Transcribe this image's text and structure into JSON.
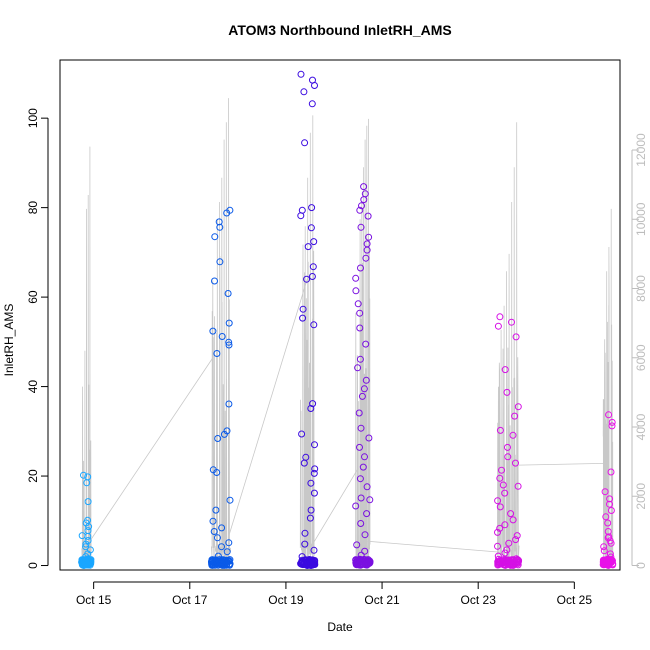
{
  "chart_data": {
    "type": "scatter",
    "title": "ATOM3 Northbound InletRH_AMS",
    "xlabel": "Date",
    "ylabel": "InletRH_AMS",
    "x_ticks": [
      "Oct 15",
      "Oct 17",
      "Oct 19",
      "Oct 21",
      "Oct 23",
      "Oct 25"
    ],
    "x_tick_days": [
      15,
      17,
      19,
      21,
      23,
      25
    ],
    "xlim_days": [
      14.3,
      25.95
    ],
    "ylim": [
      -1,
      113
    ],
    "y_ticks": [
      0,
      20,
      40,
      60,
      80,
      100
    ],
    "y2_ticks": [
      0,
      2000,
      4000,
      6000,
      8000,
      10000,
      12000
    ],
    "y2lim": [
      -130,
      14600
    ],
    "grid": false,
    "legend": "none",
    "colors": {
      "series_start": "#1e90ff",
      "series_mid": "#3010e0",
      "series_end": "#e010e0",
      "secondary_line": "#c8c8c8",
      "right_axis": "#bdbdbd"
    },
    "series": [
      {
        "flights": [
          {
            "day_start": 14.75,
            "day_end": 14.95,
            "color": "#1aa6ff",
            "high_points": [
              20.2,
              19.8,
              18.5,
              14.3,
              10.1,
              9.5,
              8.7,
              7.8,
              6.7,
              6.5,
              5.6,
              4.8,
              4.2,
              3.5,
              2.6,
              2.0,
              1.5,
              1.0,
              0.6,
              0.3
            ]
          },
          {
            "day_start": 17.45,
            "day_end": 17.85,
            "color": "#0a5ae8",
            "high_points": [
              79.4,
              78.8,
              76.8,
              75.6,
              73.5,
              67.9,
              63.6,
              60.8,
              54.2,
              52.4,
              51.2,
              49.9,
              49.3,
              47.4,
              36.1,
              30.1,
              29.3,
              28.4,
              21.4,
              20.8,
              14.6,
              12.4,
              9.9,
              8.4,
              7.6,
              6.2,
              5.1,
              4.2,
              3.1,
              2.1,
              1.2
            ]
          },
          {
            "day_start": 19.3,
            "day_end": 19.6,
            "color": "#3a0ae0",
            "high_points": [
              109.8,
              108.5,
              107.3,
              105.9,
              103.2,
              94.5,
              80.0,
              79.4,
              78.2,
              75.5,
              72.4,
              71.3,
              66.8,
              64.6,
              64.0,
              57.3,
              55.3,
              53.8,
              36.2,
              35.1,
              29.4,
              27.0,
              24.2,
              22.9,
              21.6,
              20.6,
              18.4,
              16.2,
              12.4,
              10.6,
              7.2,
              4.8,
              3.4,
              2.0,
              1.1
            ]
          },
          {
            "day_start": 20.45,
            "day_end": 20.75,
            "color": "#7a10e0",
            "high_points": [
              84.7,
              83.1,
              81.8,
              80.4,
              79.4,
              78.1,
              75.6,
              73.4,
              71.9,
              70.5,
              68.7,
              66.5,
              64.2,
              61.4,
              58.5,
              56.4,
              53.1,
              49.5,
              46.1,
              44.2,
              41.4,
              39.5,
              37.8,
              34.1,
              30.7,
              28.5,
              26.4,
              24.3,
              22.0,
              19.4,
              17.6,
              15.1,
              14.7,
              13.3,
              11.6,
              9.4,
              6.9,
              4.6,
              3.2,
              2.3,
              1.4
            ]
          },
          {
            "day_start": 23.4,
            "day_end": 23.85,
            "color": "#d510e5",
            "high_points": [
              55.6,
              54.4,
              53.5,
              51.1,
              43.8,
              38.7,
              35.5,
              33.4,
              30.2,
              29.1,
              26.4,
              24.3,
              22.9,
              21.3,
              19.5,
              18.0,
              17.7,
              16.2,
              14.5,
              13.1,
              11.6,
              10.2,
              9.1,
              8.3,
              7.4,
              6.7,
              5.8,
              5.0,
              4.3,
              3.5,
              2.8,
              2.1,
              1.5
            ]
          },
          {
            "day_start": 25.6,
            "day_end": 25.8,
            "color": "#e812e8",
            "high_points": [
              33.7,
              32.0,
              31.2,
              20.9,
              16.5,
              14.9,
              13.7,
              12.3,
              10.9,
              9.5,
              7.6,
              6.4,
              6.2,
              5.5,
              5.0,
              4.2,
              3.3,
              2.6,
              1.9,
              1.2
            ]
          }
        ]
      },
      {
        "axis": "right",
        "color": "#c8c8c8",
        "connectors": [
          [
            [
              14.92,
              700
            ],
            [
              17.48,
              6000
            ]
          ],
          [
            [
              17.8,
              800
            ],
            [
              19.45,
              8300
            ]
          ],
          [
            [
              19.55,
              600
            ],
            [
              20.5,
              2800
            ]
          ],
          [
            [
              20.7,
              700
            ],
            [
              23.5,
              380
            ]
          ],
          [
            [
              23.85,
              2900
            ],
            [
              25.62,
              2950
            ]
          ]
        ],
        "flights": [
          {
            "day_start": 14.75,
            "day_end": 14.95,
            "peaks": [
              6200,
              10300,
              10700,
              12100
            ]
          },
          {
            "day_start": 17.45,
            "day_end": 17.85,
            "peaks": [
              10000,
              10500,
              11200,
              12300,
              12800,
              13500
            ]
          },
          {
            "day_start": 19.3,
            "day_end": 19.6,
            "peaks": [
              9800,
              11200,
              12500,
              13000
            ]
          },
          {
            "day_start": 20.45,
            "day_end": 20.75,
            "peaks": [
              10000,
              10500,
              11500,
              12300,
              12700,
              12900
            ]
          },
          {
            "day_start": 23.4,
            "day_end": 23.85,
            "peaks": [
              7500,
              8500,
              9000,
              10500,
              11500,
              12800
            ]
          },
          {
            "day_start": 25.6,
            "day_end": 25.8,
            "peaks": [
              8500,
              9200,
              10300
            ]
          }
        ]
      }
    ]
  }
}
